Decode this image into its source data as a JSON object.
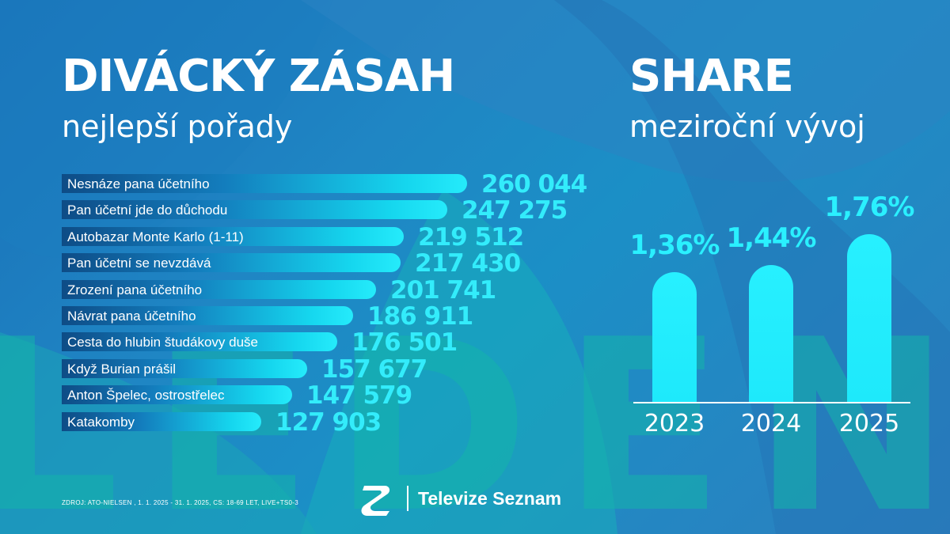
{
  "headline_left": "DIVÁCKÝ ZÁSAH",
  "subhead_left": "nejlepší pořady",
  "headline_right": "SHARE",
  "subhead_right": "meziroční vývoj",
  "watermark": "LEDEN",
  "source": "ZDROJ: ATO-NIELSEN , 1. 1. 2025 - 31. 1. 2025, CS: 18-69 LET, LIVE+TS0-3",
  "brand": "Televize Seznam",
  "colors": {
    "accent": "#2af0ff",
    "background": "#1f86c4",
    "watermark": "#14b4aa"
  },
  "icons": {
    "logo": "seznam-s-logo-icon"
  },
  "chart_data": [
    {
      "type": "bar",
      "orientation": "horizontal",
      "categories": [
        "Nesnáze pana účetního",
        "Pan účetní jde do důchodu",
        "Autobazar Monte Karlo (1-11)",
        "Pan účetní se nevzdává",
        "Zrození pana účetního",
        "Návrat pana účetního",
        "Cesta do hlubin študákovy duše",
        "Když Burian prášil",
        "Anton Špelec, ostrostřelec",
        "Katakomby"
      ],
      "values": [
        260044,
        247275,
        219512,
        217430,
        201741,
        186911,
        176501,
        157677,
        147579,
        127903
      ],
      "value_labels": [
        "260 044",
        "247 275",
        "219 512",
        "217 430",
        "201 741",
        "186 911",
        "176 501",
        "157 677",
        "147 579",
        "127 903"
      ],
      "title": "DIVÁCKÝ ZÁSAH",
      "subtitle": "nejlepší pořady"
    },
    {
      "type": "bar",
      "orientation": "vertical",
      "categories": [
        "2023",
        "2024",
        "2025"
      ],
      "values": [
        1.36,
        1.44,
        1.76
      ],
      "value_labels": [
        "1,36%",
        "1,44%",
        "1,76%"
      ],
      "title": "SHARE",
      "subtitle": "meziroční vývoj"
    }
  ]
}
